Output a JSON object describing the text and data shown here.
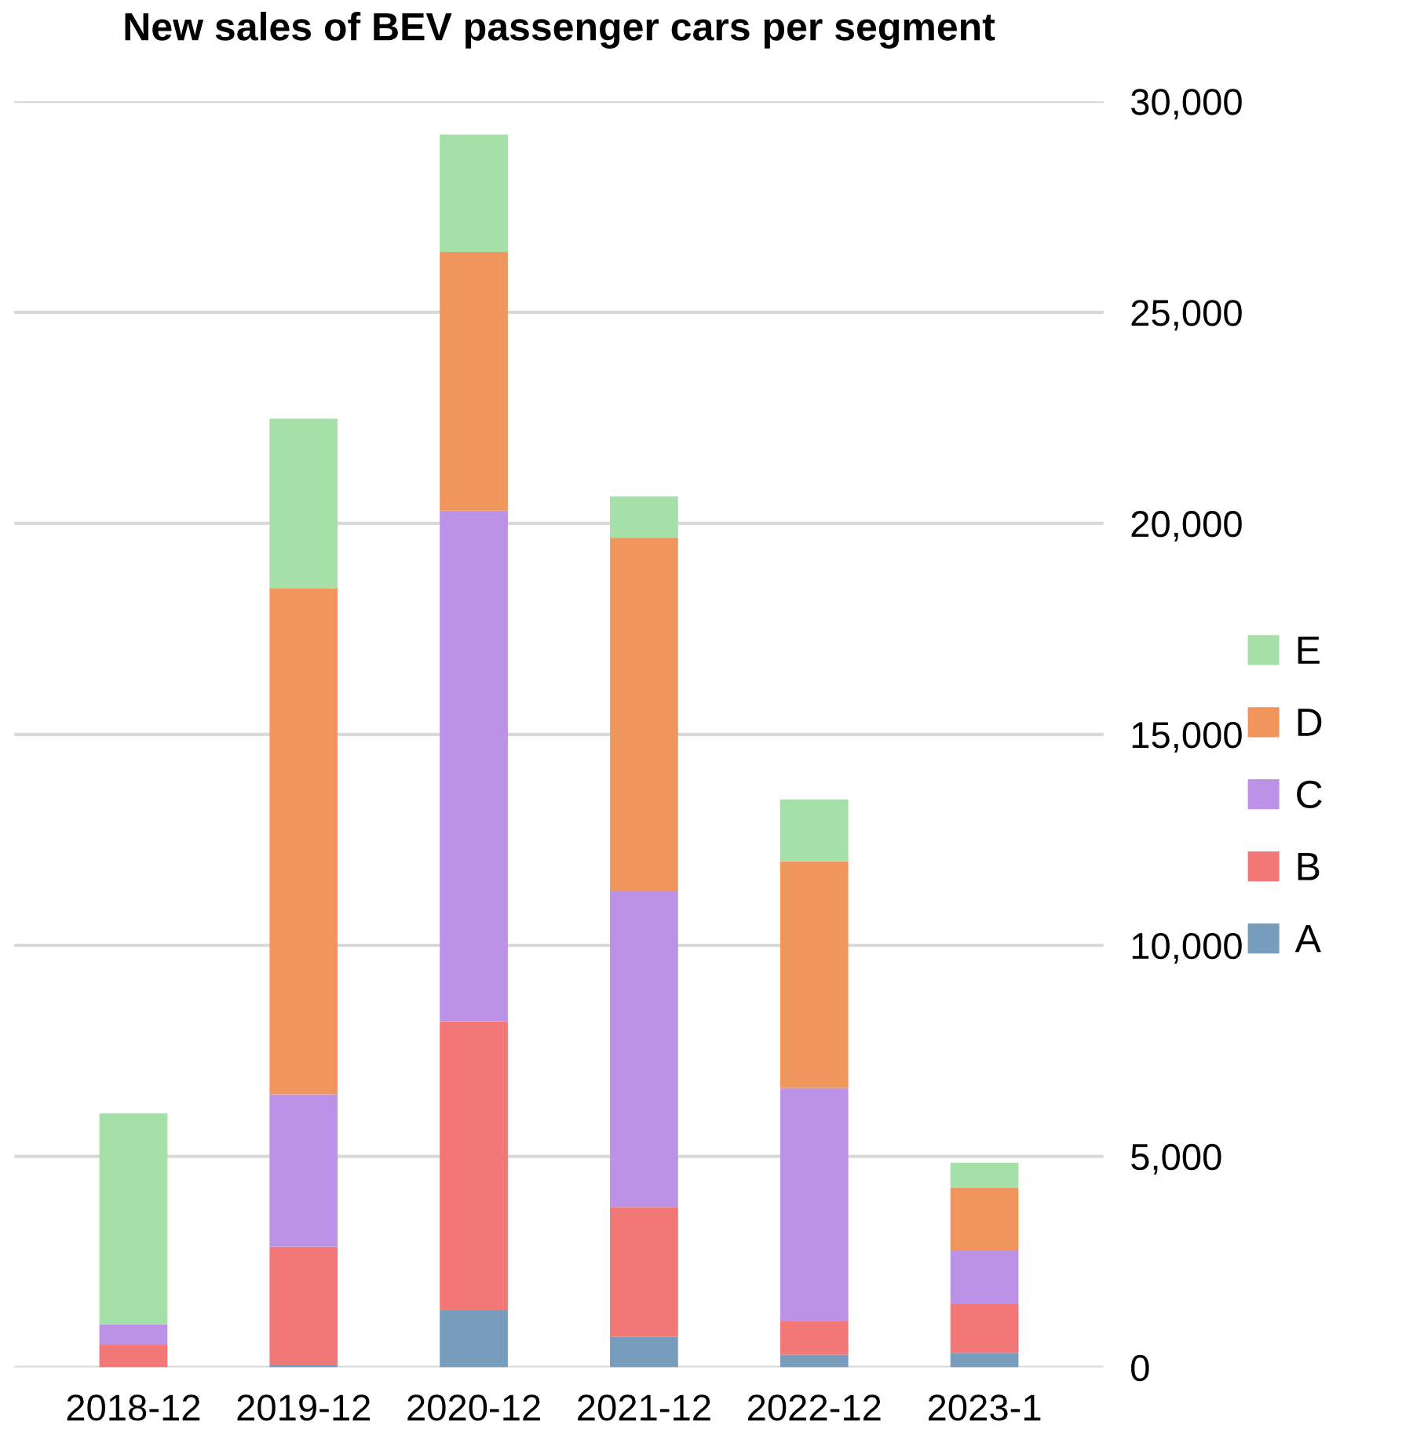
{
  "chart_data": {
    "type": "bar",
    "title": "New sales of BEV passenger cars per segment",
    "categories": [
      "2018-12",
      "2019-12",
      "2020-12",
      "2021-12",
      "2022-12",
      "2023-1"
    ],
    "stacked": true,
    "ylim": [
      0,
      30000
    ],
    "yticks": [
      {
        "value": 0,
        "label": "0"
      },
      {
        "value": 5000,
        "label": "5,000"
      },
      {
        "value": 10000,
        "label": "10,000"
      },
      {
        "value": 15000,
        "label": "15,000"
      },
      {
        "value": 20000,
        "label": "20,000"
      },
      {
        "value": 25000,
        "label": "25,000"
      },
      {
        "value": 30000,
        "label": "30,000"
      }
    ],
    "grid": "y",
    "legend": "right",
    "series": [
      {
        "name": "A",
        "color": "#779cbc",
        "values": [
          0,
          50,
          1350,
          720,
          300,
          340
        ]
      },
      {
        "name": "B",
        "color": "#f27777",
        "values": [
          530,
          2810,
          6850,
          3080,
          790,
          1160
        ]
      },
      {
        "name": "C",
        "color": "#bb92e6",
        "values": [
          490,
          3610,
          12100,
          7480,
          5530,
          1280
        ]
      },
      {
        "name": "D",
        "color": "#f0965d",
        "values": [
          0,
          11990,
          6130,
          8380,
          5370,
          1470
        ]
      },
      {
        "name": "E",
        "color": "#a5e0a8",
        "values": [
          5000,
          4020,
          2780,
          980,
          1470,
          600
        ]
      }
    ]
  }
}
